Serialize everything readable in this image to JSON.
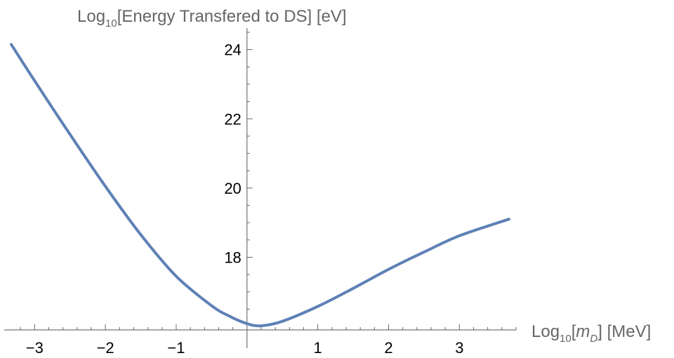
{
  "chart_data": {
    "type": "line",
    "xlabel": {
      "prefix": "Log",
      "sub": "10",
      "open": "[",
      "var": "m",
      "var_sub": "D",
      "close": "] [MeV]"
    },
    "ylabel": {
      "prefix": "Log",
      "sub": "10",
      "rest": "[Energy Transfered to DS] [eV]"
    },
    "xlim": [
      -3.35,
      3.8
    ],
    "ylim": [
      15.9,
      24.5
    ],
    "x_ticks": [
      {
        "v": -3,
        "label": "−3"
      },
      {
        "v": -2,
        "label": "−2"
      },
      {
        "v": -1,
        "label": "−1"
      },
      {
        "v": 1,
        "label": "1"
      },
      {
        "v": 2,
        "label": "2"
      },
      {
        "v": 3,
        "label": "3"
      }
    ],
    "y_ticks": [
      {
        "v": 18,
        "label": "18"
      },
      {
        "v": 20,
        "label": "20"
      },
      {
        "v": 22,
        "label": "22"
      },
      {
        "v": 24,
        "label": "24"
      }
    ],
    "x_minor_step": 0.2,
    "y_minor_step": 0.5,
    "grid": false,
    "series": [
      {
        "color": "#5e81b5",
        "points": [
          [
            -3.33,
            24.15
          ],
          [
            -3.0,
            23.1
          ],
          [
            -2.5,
            21.55
          ],
          [
            -2.0,
            20.05
          ],
          [
            -1.5,
            18.65
          ],
          [
            -1.0,
            17.45
          ],
          [
            -0.5,
            16.6
          ],
          [
            -0.25,
            16.3
          ],
          [
            0.0,
            16.08
          ],
          [
            0.2,
            16.02
          ],
          [
            0.5,
            16.15
          ],
          [
            1.0,
            16.58
          ],
          [
            1.5,
            17.1
          ],
          [
            2.0,
            17.65
          ],
          [
            2.5,
            18.15
          ],
          [
            3.0,
            18.62
          ],
          [
            3.7,
            19.1
          ]
        ]
      }
    ]
  }
}
